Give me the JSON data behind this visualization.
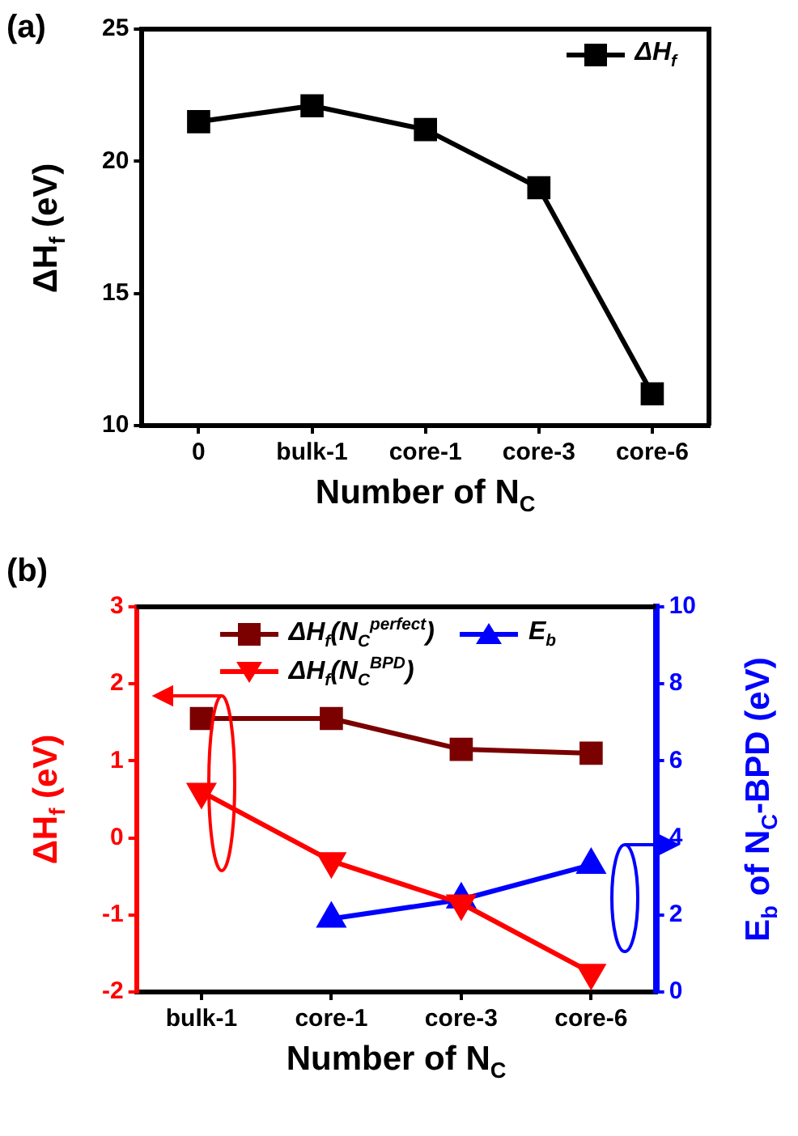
{
  "chart_data": [
    {
      "type": "line",
      "annotations": [
        "(a)"
      ],
      "xlabel": "Number of N$_{C}$",
      "ylabel": "ΔH$_{f}$ (eV)",
      "categories": [
        "0",
        "bulk-1",
        "core-1",
        "core-3",
        "core-6"
      ],
      "series": [
        {
          "name": "ΔH$_{f}$",
          "color": "#000000",
          "values": [
            21.5,
            22.1,
            21.2,
            19.0,
            11.2
          ]
        }
      ],
      "ylim": [
        10,
        25
      ],
      "yticks": [
        10,
        15,
        20,
        25
      ],
      "marker": "square",
      "legend": "top right",
      "grid": false
    },
    {
      "type": "line",
      "annotations": [
        "(b)"
      ],
      "xlabel": "Number of N$_{C}$",
      "ylabel": "ΔH$_{f}$ (eV)",
      "y2label": "E$_{b}$ of N$_{C}$-BPD (eV)",
      "categories": [
        "bulk-1",
        "core-1",
        "core-3",
        "core-6"
      ],
      "series": [
        {
          "name": "ΔH$_{f}$(N$_{C}$$^{perfect}$)",
          "color": "#7b0000",
          "marker": "square",
          "values": [
            1.55,
            1.55,
            1.15,
            1.1
          ]
        },
        {
          "name": "ΔH$_{f}$(N$_{C}$$^{BPD}$)",
          "color": "#ff0000",
          "marker": "triangle-down",
          "values": [
            0.6,
            -0.3,
            -0.85,
            -1.75
          ]
        },
        {
          "name": "E$_{b}$",
          "color": "#0000ff",
          "marker": "triangle",
          "axis": "y2",
          "values": [
            null,
            1.9,
            2.4,
            3.3
          ]
        }
      ],
      "ylim": [
        -2,
        3
      ],
      "yticks": [
        -2,
        -1,
        0,
        1,
        2,
        3
      ],
      "y2lim": [
        0,
        10
      ],
      "y2ticks": [
        0,
        2,
        4,
        6,
        8,
        10
      ],
      "legend": "top",
      "grid": false
    }
  ]
}
